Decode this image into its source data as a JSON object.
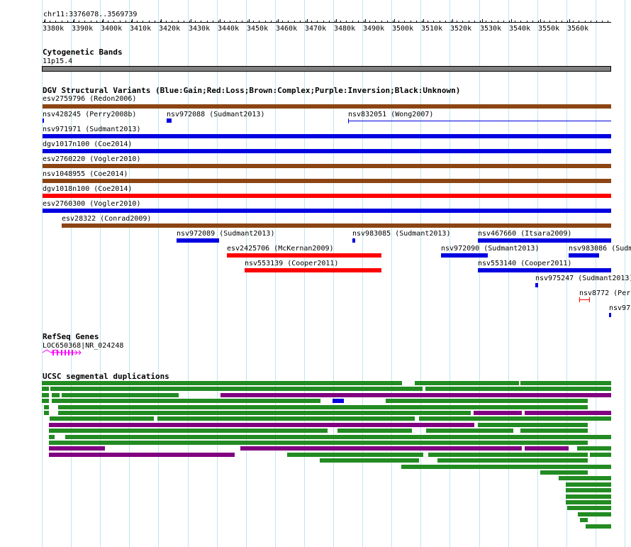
{
  "ruler": {
    "position": "chr11:3376078..3569739",
    "ticks": [
      "3380k",
      "3390k",
      "3400k",
      "3410k",
      "3420k",
      "3430k",
      "3440k",
      "3450k",
      "3460k",
      "3470k",
      "3480k",
      "3490k",
      "3500k",
      "3510k",
      "3520k",
      "3530k",
      "3540k",
      "3550k",
      "3560k"
    ]
  },
  "cytoband": {
    "title": "Cytogenetic Bands",
    "band": "11p15.4",
    "color": "#808080"
  },
  "dgv": {
    "title": "DGV Structural Variants (Blue:Gain;Red:Loss;Brown:Complex;Purple:Inversion;Black:Unknown)",
    "colors": {
      "gain": "#0000e0",
      "loss": "#ff0000",
      "complex": "#8b4513"
    },
    "features": [
      {
        "label": "esv2759796 (Redon2006)",
        "type": "complex"
      },
      {
        "label": "nsv428245 (Perry2008b)",
        "type": "gain"
      },
      {
        "label": "nsv972088 (Sudmant2013)",
        "type": "gain"
      },
      {
        "label": "nsv832051 (Wong2007)",
        "type": "gain"
      },
      {
        "label": "nsv971971 (Sudmant2013)",
        "type": "gain"
      },
      {
        "label": "dgv1017n100 (Coe2014)",
        "type": "gain"
      },
      {
        "label": "esv2760220 (Vogler2010)",
        "type": "complex"
      },
      {
        "label": "nsv1048955 (Coe2014)",
        "type": "complex"
      },
      {
        "label": "dgv1018n100 (Coe2014)",
        "type": "loss"
      },
      {
        "label": "esv2760300 (Vogler2010)",
        "type": "gain"
      },
      {
        "label": "esv28322 (Conrad2009)",
        "type": "complex"
      },
      {
        "label": "nsv972089 (Sudmant2013)",
        "type": "gain"
      },
      {
        "label": "nsv983085 (Sudmant2013)",
        "type": "gain"
      },
      {
        "label": "nsv467660 (Itsara2009)",
        "type": "gain"
      },
      {
        "label": "esv2425706 (McKernan2009)",
        "type": "loss"
      },
      {
        "label": "nsv972090 (Sudmant2013)",
        "type": "gain"
      },
      {
        "label": "nsv983086 (Sudm",
        "type": "gain"
      },
      {
        "label": "nsv553139 (Cooper2011)",
        "type": "loss"
      },
      {
        "label": "nsv553140 (Cooper2011)",
        "type": "gain"
      },
      {
        "label": "nsv975247 (Sudmant2013)",
        "type": "gain"
      },
      {
        "label": "nsv8772 (Perr",
        "type": "loss"
      },
      {
        "label": "nsv972",
        "type": "gain"
      }
    ]
  },
  "refseq": {
    "title": "RefSeq Genes",
    "gene": "LOC650368|NR_024248",
    "color": "#ff00ff"
  },
  "segdups": {
    "title": "UCSC segmental duplications",
    "colors": {
      "green": "#228b22",
      "purple": "#800080",
      "blue": "#0000e0"
    }
  }
}
